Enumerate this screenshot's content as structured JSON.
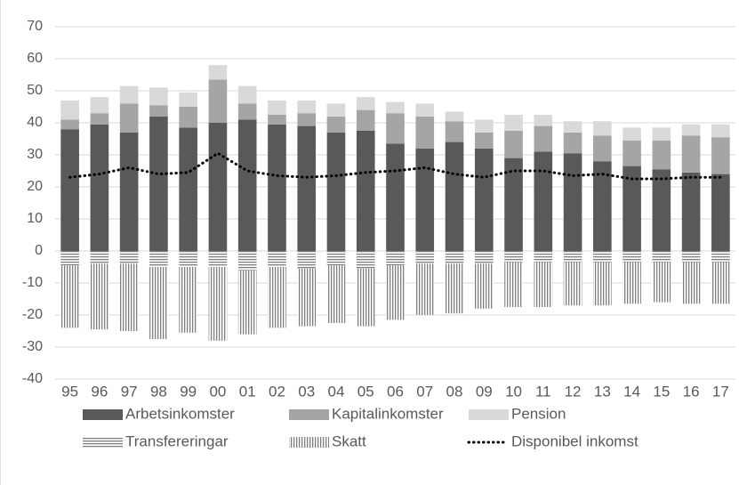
{
  "chart_data": {
    "type": "bar",
    "categories": [
      "95",
      "96",
      "97",
      "98",
      "99",
      "00",
      "01",
      "02",
      "03",
      "04",
      "05",
      "06",
      "07",
      "08",
      "09",
      "10",
      "11",
      "12",
      "13",
      "14",
      "15",
      "16",
      "17"
    ],
    "series": [
      {
        "name": "Arbetsinkomster",
        "color": "#595959",
        "values": [
          38,
          39.5,
          37,
          42,
          38.5,
          40,
          41,
          39.5,
          39,
          37,
          37.5,
          33.5,
          32,
          34,
          32,
          29,
          31,
          30.5,
          28,
          26.5,
          25.5,
          24.5,
          24
        ]
      },
      {
        "name": "Kapitalinkomster",
        "color": "#a5a5a5",
        "values": [
          3,
          3.5,
          9,
          3.5,
          6.5,
          13.5,
          5,
          3,
          4,
          5,
          6.5,
          9.5,
          10,
          6.5,
          5,
          8.5,
          8,
          6.5,
          8,
          8,
          9,
          11.5,
          11.5
        ]
      },
      {
        "name": "Pension",
        "color": "#d9d9d9",
        "values": [
          6,
          5,
          5.5,
          5.5,
          4.5,
          4.5,
          5.5,
          4.5,
          4,
          4,
          4,
          3.5,
          4,
          3,
          4,
          5,
          3.5,
          3.5,
          4.5,
          4,
          4,
          3.5,
          4
        ]
      },
      {
        "name": "Transfereringar",
        "color": "#7f7f7f",
        "hatch": "horizontal",
        "values": [
          -4.5,
          -4,
          -4,
          -5,
          -5,
          -5,
          -6,
          -5,
          -5.5,
          -4.5,
          -5.5,
          -4.5,
          -4,
          -4,
          -4,
          -3.5,
          -3.5,
          -3.5,
          -3.5,
          -3.5,
          -3.5,
          -3.5,
          -3.5
        ]
      },
      {
        "name": "Skatt",
        "color": "#7f7f7f",
        "hatch": "vertical",
        "values": [
          -19.5,
          -20.5,
          -21,
          -22.5,
          -20.5,
          -23,
          -20,
          -19,
          -18,
          -18,
          -18,
          -17,
          -16,
          -15.5,
          -14,
          -14,
          -14,
          -13.5,
          -13.5,
          -13,
          -12.5,
          -13,
          -13
        ]
      },
      {
        "name": "Disponibel inkomst",
        "color": "#000000",
        "type": "line",
        "values": [
          23,
          24,
          26,
          24,
          24.5,
          30.5,
          25,
          23.5,
          23,
          23.5,
          24.5,
          25,
          26,
          24,
          23,
          25,
          25,
          23.5,
          24,
          22.5,
          22.5,
          23,
          23
        ]
      }
    ],
    "ylim": [
      -40,
      70
    ],
    "yticks": [
      -40,
      -30,
      -20,
      -10,
      0,
      10,
      20,
      30,
      40,
      50,
      60,
      70
    ],
    "grid": true,
    "legend": "bottom"
  }
}
